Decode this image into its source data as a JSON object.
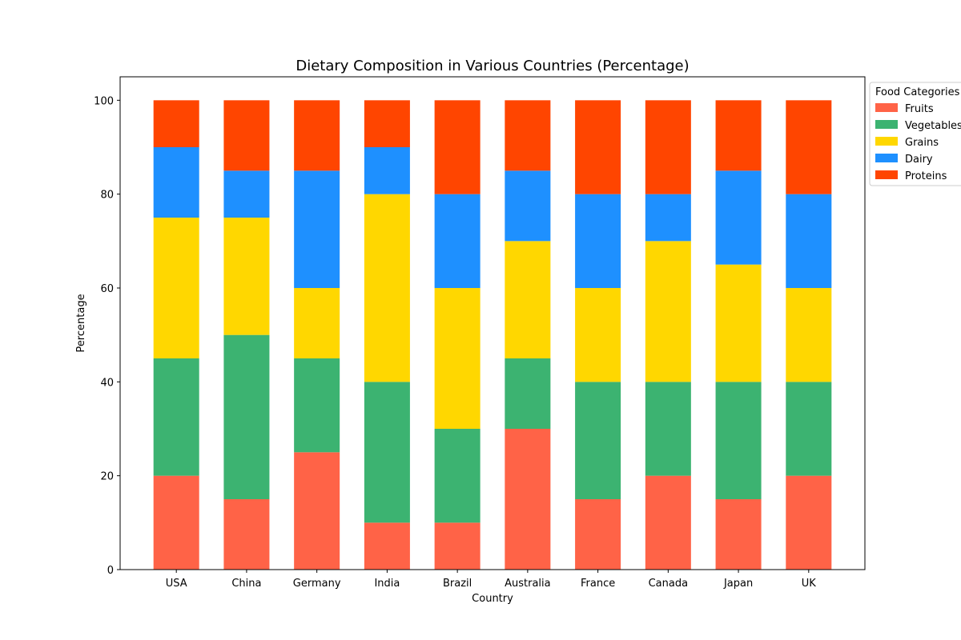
{
  "chart_data": {
    "type": "bar",
    "stacked": true,
    "title": "Dietary Composition in Various Countries (Percentage)",
    "xlabel": "Country",
    "ylabel": "Percentage",
    "ylim": [
      0,
      105
    ],
    "yticks": [
      0,
      20,
      40,
      60,
      80,
      100
    ],
    "grid": false,
    "categories": [
      "USA",
      "China",
      "Germany",
      "India",
      "Brazil",
      "Australia",
      "France",
      "Canada",
      "Japan",
      "UK"
    ],
    "series": [
      {
        "name": "Fruits",
        "color": "#ff6347",
        "values": [
          20,
          15,
          25,
          10,
          10,
          30,
          15,
          20,
          15,
          20
        ]
      },
      {
        "name": "Vegetables",
        "color": "#3cb371",
        "values": [
          25,
          35,
          20,
          30,
          20,
          15,
          25,
          20,
          25,
          20
        ]
      },
      {
        "name": "Grains",
        "color": "#ffd700",
        "values": [
          30,
          25,
          15,
          40,
          30,
          25,
          20,
          30,
          25,
          20
        ]
      },
      {
        "name": "Dairy",
        "color": "#1e90ff",
        "values": [
          15,
          10,
          25,
          10,
          20,
          15,
          20,
          10,
          20,
          20
        ]
      },
      {
        "name": "Proteins",
        "color": "#ff4500",
        "values": [
          10,
          15,
          15,
          10,
          20,
          15,
          20,
          20,
          15,
          20
        ]
      }
    ],
    "legend": {
      "title": "Food Categories",
      "placement": "outside-right-top"
    }
  }
}
